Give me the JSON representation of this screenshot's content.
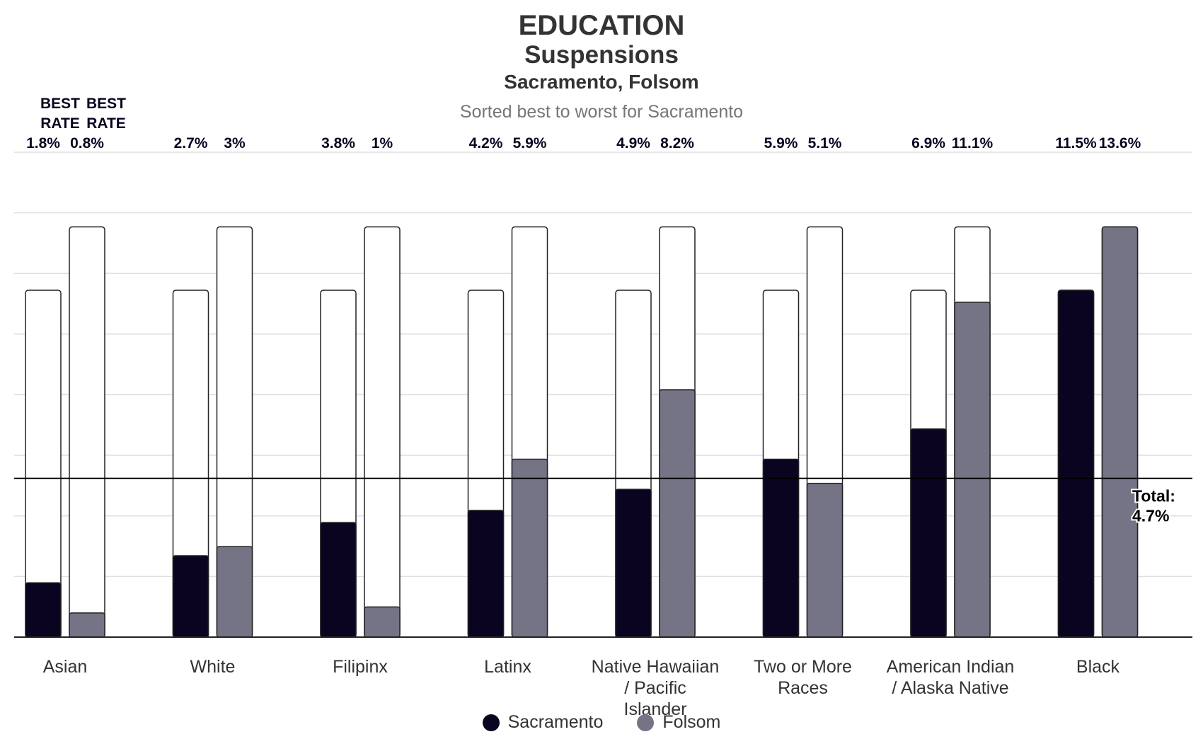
{
  "header": {
    "title": "EDUCATION",
    "subtitle": "Suspensions",
    "places": "Sacramento, Folsom",
    "note": "Sorted best to worst for Sacramento"
  },
  "best_rate": {
    "sacramento_label": "BEST RATE",
    "folsom_label": "BEST RATE"
  },
  "colors": {
    "sacramento": "#0a0420",
    "folsom": "#757386",
    "gridline": "#e0e0e0",
    "outline": "#222222"
  },
  "legend": [
    {
      "name": "Sacramento",
      "color": "#0a0420"
    },
    {
      "name": "Folsom",
      "color": "#757386"
    }
  ],
  "chart_data": {
    "type": "bar",
    "categories": [
      "Asian",
      "White",
      "Filipinx",
      "Latinx",
      "Native Hawaiian / Pacific Islander",
      "Two or More Races",
      "American Indian / Alaska Native",
      "Black"
    ],
    "category_lines": [
      [
        "Asian"
      ],
      [
        "White"
      ],
      [
        "Filipinx"
      ],
      [
        "Latinx"
      ],
      [
        "Native Hawaiian",
        "/ Pacific",
        "Islander"
      ],
      [
        "Two or More",
        "Races"
      ],
      [
        "American Indian",
        "/ Alaska Native"
      ],
      [
        "Black"
      ]
    ],
    "series": [
      {
        "name": "Sacramento",
        "values": [
          1.8,
          2.7,
          3.8,
          4.2,
          4.9,
          5.9,
          6.9,
          11.5
        ],
        "labels": [
          "1.8%",
          "2.7%",
          "3.8%",
          "4.2%",
          "4.9%",
          "5.9%",
          "6.9%",
          "11.5%"
        ],
        "max": 11.5
      },
      {
        "name": "Folsom",
        "values": [
          0.8,
          3,
          1,
          5.9,
          8.2,
          5.1,
          11.1,
          13.6
        ],
        "labels": [
          "0.8%",
          "3%",
          "1%",
          "5.9%",
          "8.2%",
          "5.1%",
          "11.1%",
          "13.6%"
        ],
        "max": 13.6
      }
    ],
    "reference_line": {
      "value": 4.7,
      "label_top": "Total:",
      "label_bottom": "4.7%"
    },
    "ylim": [
      0,
      17
    ],
    "grid": true,
    "legend_position": "bottom-center"
  }
}
